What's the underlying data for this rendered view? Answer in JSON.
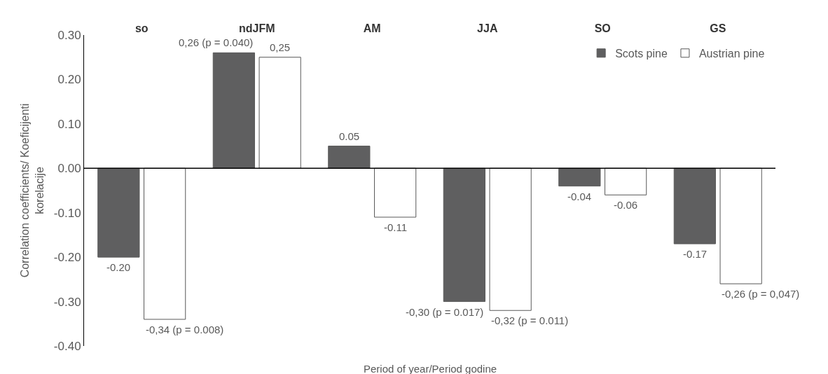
{
  "chart_data": {
    "type": "bar",
    "categories": [
      "so",
      "ndJFM",
      "AM",
      "JJA",
      "SO",
      "GS"
    ],
    "series": [
      {
        "name": "Scots pine",
        "color": "#5f5f60",
        "values": [
          -0.2,
          0.26,
          0.05,
          -0.3,
          -0.04,
          -0.17
        ],
        "value_labels": [
          "-0.20",
          "0,26 (p = 0.040)",
          "0.05",
          "-0,30 (p = 0.017)",
          "-0.04",
          "-0.17"
        ]
      },
      {
        "name": "Austrian pine",
        "color": "#ffffff",
        "values": [
          -0.34,
          0.25,
          -0.11,
          -0.32,
          -0.06,
          -0.26
        ],
        "value_labels": [
          "-0,34 (p = 0.008)",
          "0,25",
          "-0.11",
          "-0,32 (p = 0.011)",
          "-0.06",
          "-0,26 (p = 0,047)"
        ]
      }
    ],
    "xlabel": "Period of year/Period godine",
    "ylabel": "Correlation coefficients/ Koeficijenti korelacije",
    "ylim": [
      -0.4,
      0.3
    ],
    "yticks": [
      {
        "value": 0.3,
        "label": "0.30"
      },
      {
        "value": 0.2,
        "label": "0.20"
      },
      {
        "value": 0.1,
        "label": "0.10"
      },
      {
        "value": 0,
        "label": "0.00"
      },
      {
        "value": -0.1,
        "label": "-0.10"
      },
      {
        "value": -0.2,
        "label": "-0.20"
      },
      {
        "value": -0.3,
        "label": "-0.30"
      },
      {
        "value": -0.4,
        "label": "-0.40"
      }
    ],
    "legend": "top right"
  }
}
